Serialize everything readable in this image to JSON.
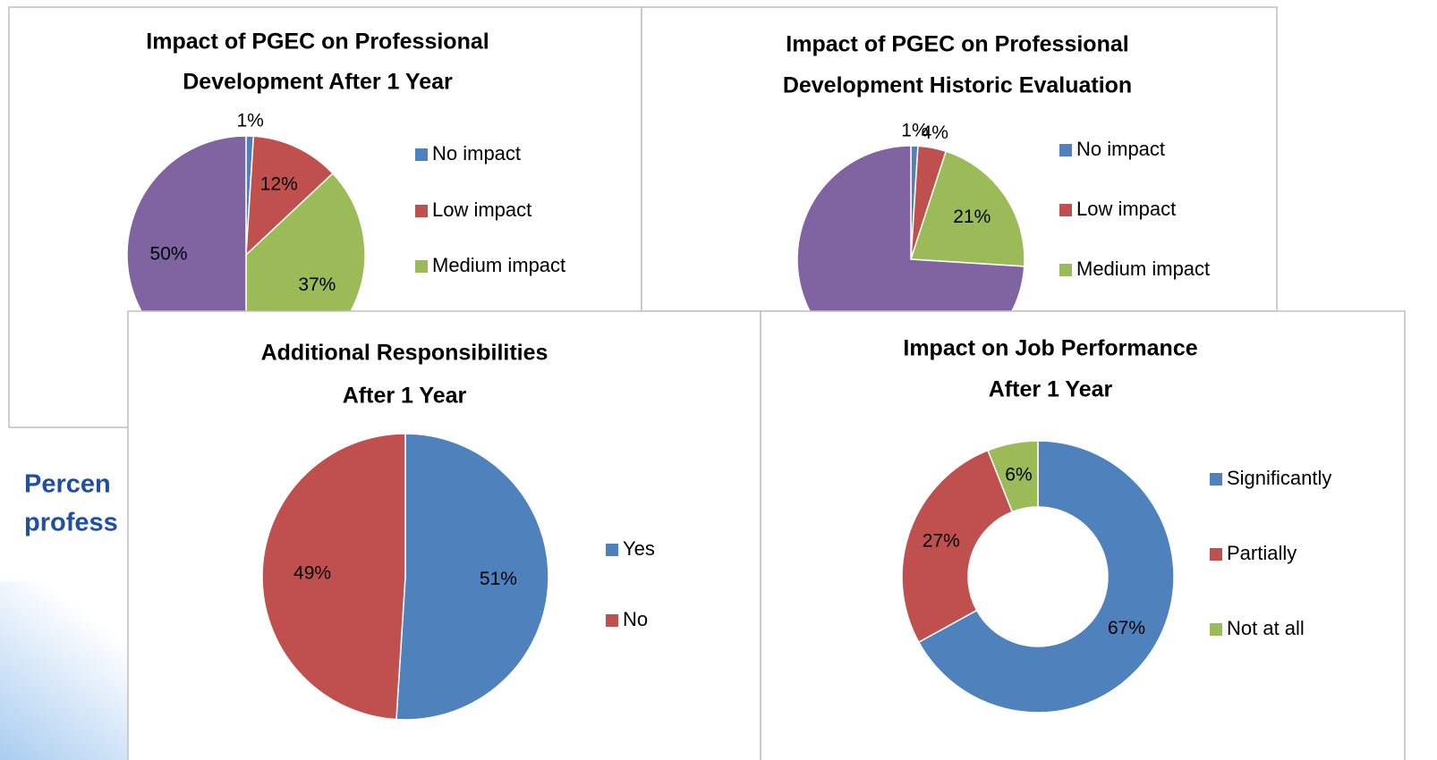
{
  "background_text": {
    "lines": [
      "Percen",
      "profess"
    ]
  },
  "chart_data": [
    {
      "type": "pie",
      "title": [
        "Impact of PGEC on Professional",
        "Development After 1 Year"
      ],
      "categories": [
        "No impact",
        "Low impact",
        "Medium impact",
        null
      ],
      "values": [
        1,
        12,
        37,
        50
      ],
      "value_labels": [
        "1%",
        "12%",
        "37%",
        "50%"
      ],
      "colors": [
        "#4f81bd",
        "#c0504d",
        "#9bbb59",
        "#8064a2"
      ]
    },
    {
      "type": "pie",
      "title": [
        "Impact of PGEC on Professional",
        "Development Historic Evaluation"
      ],
      "categories": [
        "No impact",
        "Low impact",
        "Medium impact",
        null
      ],
      "values": [
        1,
        4,
        21,
        74
      ],
      "value_labels": [
        "1%",
        "4%",
        "21%",
        null
      ],
      "colors": [
        "#4f81bd",
        "#c0504d",
        "#9bbb59",
        "#8064a2"
      ]
    },
    {
      "type": "pie",
      "title": [
        "Additional Responsibilities",
        "After 1 Year"
      ],
      "categories": [
        "Yes",
        "No"
      ],
      "values": [
        51,
        49
      ],
      "value_labels": [
        "51%",
        "49%"
      ],
      "colors": [
        "#4f81bd",
        "#c0504d"
      ]
    },
    {
      "type": "donut",
      "title": [
        "Impact on Job Performance",
        "After 1 Year"
      ],
      "categories": [
        "Significantly",
        "Partially",
        "Not at all"
      ],
      "values": [
        67,
        27,
        6
      ],
      "value_labels": [
        "67%",
        "27%",
        "6%"
      ],
      "colors": [
        "#4f81bd",
        "#c0504d",
        "#9bbb59"
      ]
    }
  ]
}
